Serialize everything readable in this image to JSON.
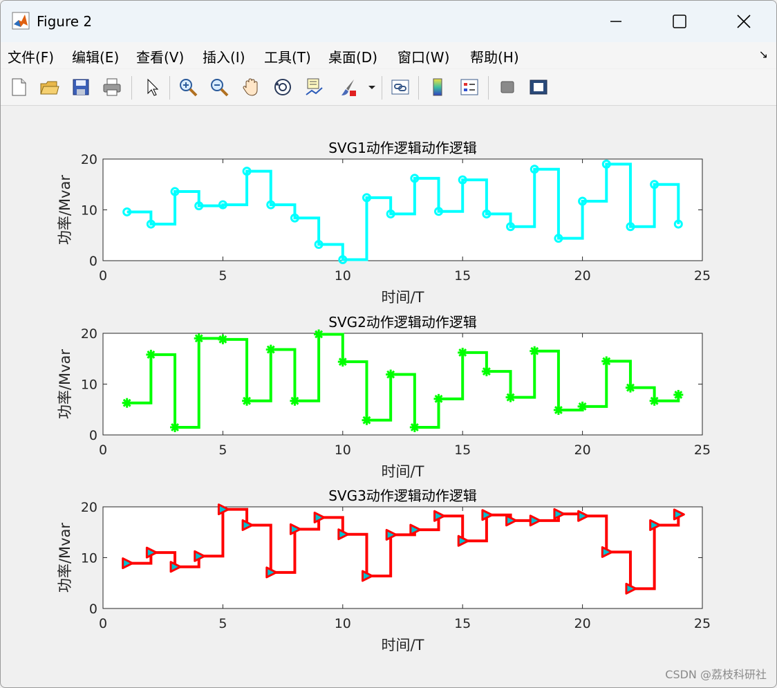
{
  "window": {
    "title": "Figure 2",
    "menu": [
      "文件(F)",
      "编辑(E)",
      "查看(V)",
      "插入(I)",
      "工具(T)",
      "桌面(D)",
      "窗口(W)",
      "帮助(H)"
    ]
  },
  "toolbar": {
    "buttons": [
      "new-file-icon",
      "open-folder-icon",
      "save-icon",
      "print-icon",
      "pointer-icon",
      "zoom-in-icon",
      "zoom-out-icon",
      "pan-hand-icon",
      "rotate-3d-icon",
      "data-cursor-icon",
      "brush-icon",
      "link-plot-icon",
      "colorbar-icon",
      "legend-icon",
      "hide-plot-tools-icon",
      "show-plot-tools-icon"
    ]
  },
  "watermark": "CSDN @荔枝科研社",
  "chart_data": [
    {
      "type": "line",
      "step": "post",
      "title": "SVG1动作逻辑动作逻辑",
      "xlabel": "时间/T",
      "ylabel": "功率/Mvar",
      "xlim": [
        0,
        25
      ],
      "ylim": [
        0,
        20
      ],
      "xticks": [
        "0",
        "5",
        "10",
        "15",
        "20",
        "25"
      ],
      "yticks": [
        "0",
        "10",
        "20"
      ],
      "x": [
        1,
        2,
        3,
        4,
        5,
        6,
        7,
        8,
        9,
        10,
        11,
        12,
        13,
        14,
        15,
        16,
        17,
        18,
        19,
        20,
        21,
        22,
        23,
        24
      ],
      "series": [
        {
          "values": [
            9.6,
            7.2,
            13.6,
            10.8,
            11.0,
            17.6,
            11.0,
            8.4,
            3.2,
            0.2,
            12.4,
            9.2,
            16.2,
            9.7,
            15.9,
            9.2,
            6.7,
            18.0,
            4.4,
            11.7,
            19.0,
            6.7,
            15.0,
            7.2
          ],
          "color": "#00ffff",
          "marker": "circle"
        }
      ]
    },
    {
      "type": "line",
      "step": "post",
      "title": "SVG2动作逻辑动作逻辑",
      "xlabel": "时间/T",
      "ylabel": "功率/Mvar",
      "xlim": [
        0,
        25
      ],
      "ylim": [
        0,
        20
      ],
      "xticks": [
        "0",
        "5",
        "10",
        "15",
        "20",
        "25"
      ],
      "yticks": [
        "0",
        "10",
        "20"
      ],
      "x": [
        1,
        2,
        3,
        4,
        5,
        6,
        7,
        8,
        9,
        10,
        11,
        12,
        13,
        14,
        15,
        16,
        17,
        18,
        19,
        20,
        21,
        22,
        23,
        24
      ],
      "series": [
        {
          "values": [
            6.3,
            15.8,
            1.5,
            19.0,
            18.8,
            6.7,
            16.8,
            6.7,
            19.8,
            14.4,
            2.9,
            11.9,
            1.5,
            7.1,
            16.2,
            12.5,
            7.4,
            16.5,
            4.9,
            5.6,
            14.5,
            9.3,
            6.7,
            7.9
          ],
          "color": "#00ff00",
          "marker": "asterisk"
        }
      ]
    },
    {
      "type": "line",
      "step": "post",
      "title": "SVG3动作逻辑动作逻辑",
      "xlabel": "时间/T",
      "ylabel": "功率/Mvar",
      "xlim": [
        0,
        25
      ],
      "ylim": [
        0,
        20
      ],
      "xticks": [
        "0",
        "5",
        "10",
        "15",
        "20",
        "25"
      ],
      "yticks": [
        "0",
        "10",
        "20"
      ],
      "x": [
        1,
        2,
        3,
        4,
        5,
        6,
        7,
        8,
        9,
        10,
        11,
        12,
        13,
        14,
        15,
        16,
        17,
        18,
        19,
        20,
        21,
        22,
        23,
        24
      ],
      "series": [
        {
          "values": [
            8.9,
            11.0,
            8.2,
            10.3,
            19.5,
            16.4,
            7.1,
            15.6,
            17.9,
            14.6,
            6.4,
            14.5,
            15.5,
            18.2,
            13.3,
            18.4,
            17.3,
            17.3,
            18.6,
            18.2,
            11.1,
            3.9,
            16.4,
            18.5
          ],
          "color": "#ff0000",
          "marker": "triangle-right",
          "marker_fill": "#00c0d0"
        }
      ]
    }
  ]
}
